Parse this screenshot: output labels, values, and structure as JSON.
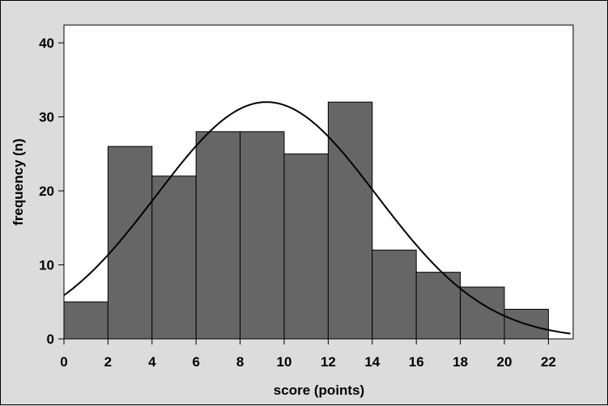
{
  "chart_data": {
    "type": "bar",
    "subtype": "histogram with normal curve",
    "xlabel": "score (points)",
    "ylabel": "frequency (n)",
    "xlim": [
      0,
      23
    ],
    "ylim": [
      0,
      42
    ],
    "xticks": [
      0,
      2,
      4,
      6,
      8,
      10,
      12,
      14,
      16,
      18,
      20,
      22
    ],
    "yticks": [
      0,
      10,
      20,
      30,
      40
    ],
    "bins": [
      {
        "start": 0,
        "end": 2,
        "value": 5
      },
      {
        "start": 2,
        "end": 4,
        "value": 26
      },
      {
        "start": 4,
        "end": 6,
        "value": 22
      },
      {
        "start": 6,
        "end": 8,
        "value": 28
      },
      {
        "start": 8,
        "end": 10,
        "value": 28
      },
      {
        "start": 10,
        "end": 12,
        "value": 25
      },
      {
        "start": 12,
        "end": 14,
        "value": 32
      },
      {
        "start": 14,
        "end": 16,
        "value": 12
      },
      {
        "start": 16,
        "end": 18,
        "value": 9
      },
      {
        "start": 18,
        "end": 20,
        "value": 7
      },
      {
        "start": 20,
        "end": 22,
        "value": 4
      }
    ],
    "normal_curve": {
      "mean": 9.2,
      "sd": 5.0,
      "peak": 32
    },
    "grid": false,
    "colors": {
      "bar_fill": "#666666",
      "bar_stroke": "#000000",
      "plot_bg": "#ffffff",
      "outer_bg": "#dcdcdc",
      "curve": "#000000"
    }
  }
}
